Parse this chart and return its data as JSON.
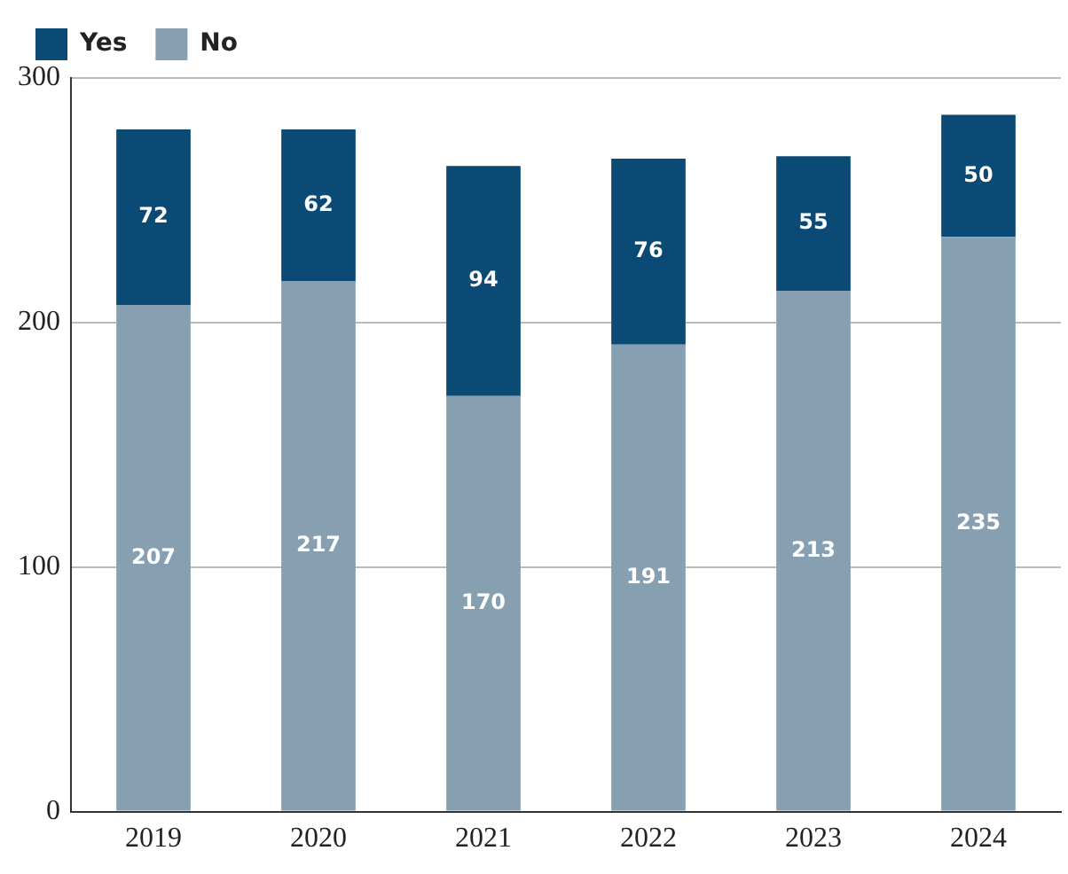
{
  "chart_data": {
    "type": "bar",
    "stacked": true,
    "categories": [
      "2019",
      "2020",
      "2021",
      "2022",
      "2023",
      "2024"
    ],
    "series": [
      {
        "name": "No",
        "color": "#86a0b1",
        "values": [
          207,
          217,
          170,
          191,
          213,
          235
        ]
      },
      {
        "name": "Yes",
        "color": "#0b4a74",
        "values": [
          72,
          62,
          94,
          76,
          55,
          50
        ]
      }
    ],
    "ylim": [
      0,
      300
    ],
    "yticks": [
      0,
      100,
      200,
      300
    ],
    "grid": "y",
    "legend": "top left",
    "data_labels": true
  }
}
